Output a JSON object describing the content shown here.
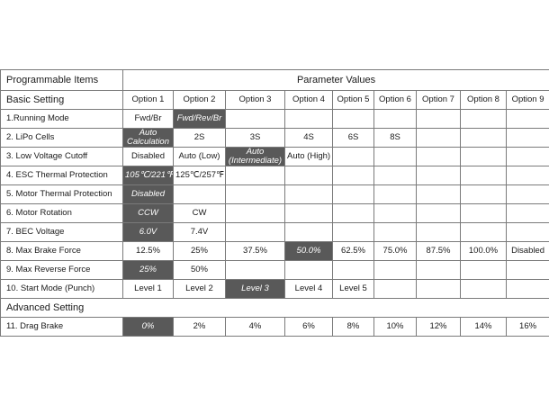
{
  "table": {
    "header": {
      "items_label": "Programmable Items",
      "values_label": "Parameter Values"
    },
    "basic": {
      "label": "Basic Setting",
      "options": [
        "Option 1",
        "Option 2",
        "Option 3",
        "Option 4",
        "Option 5",
        "Option 6",
        "Option 7",
        "Option 8",
        "Option 9"
      ]
    },
    "rows_basic": [
      {
        "item": "1.Running Mode",
        "cells": [
          {
            "text": "Fwd/Br"
          },
          {
            "text": "Fwd/Rev/Br",
            "hl": true
          },
          {
            "text": ""
          },
          {
            "text": ""
          },
          {
            "text": ""
          },
          {
            "text": ""
          },
          {
            "text": ""
          },
          {
            "text": ""
          },
          {
            "text": ""
          }
        ]
      },
      {
        "item": "2. LiPo Cells",
        "cells": [
          {
            "text": "Auto Calculation",
            "hl": true
          },
          {
            "text": "2S"
          },
          {
            "text": "3S"
          },
          {
            "text": "4S"
          },
          {
            "text": "6S"
          },
          {
            "text": "8S"
          },
          {
            "text": ""
          },
          {
            "text": ""
          },
          {
            "text": ""
          }
        ]
      },
      {
        "item": "3. Low Voltage Cutoff",
        "cells": [
          {
            "text": "Disabled"
          },
          {
            "text": "Auto (Low)"
          },
          {
            "text": "Auto (Intermediate)",
            "hl": true
          },
          {
            "text": "Auto (High)"
          },
          {
            "text": ""
          },
          {
            "text": ""
          },
          {
            "text": ""
          },
          {
            "text": ""
          },
          {
            "text": ""
          }
        ]
      },
      {
        "item": "4. ESC Thermal Protection",
        "cells": [
          {
            "text": "105℃/221℉",
            "hl": true
          },
          {
            "text": "125℃/257℉"
          },
          {
            "text": ""
          },
          {
            "text": ""
          },
          {
            "text": ""
          },
          {
            "text": ""
          },
          {
            "text": ""
          },
          {
            "text": ""
          },
          {
            "text": ""
          }
        ]
      },
      {
        "item": "5. Motor Thermal Protection",
        "cells": [
          {
            "text": "Disabled",
            "hl": true
          },
          {
            "text": ""
          },
          {
            "text": ""
          },
          {
            "text": ""
          },
          {
            "text": ""
          },
          {
            "text": ""
          },
          {
            "text": ""
          },
          {
            "text": ""
          },
          {
            "text": ""
          }
        ]
      },
      {
        "item": "6. Motor Rotation",
        "cells": [
          {
            "text": "CCW",
            "hl": true
          },
          {
            "text": "CW"
          },
          {
            "text": ""
          },
          {
            "text": ""
          },
          {
            "text": ""
          },
          {
            "text": ""
          },
          {
            "text": ""
          },
          {
            "text": ""
          },
          {
            "text": ""
          }
        ]
      },
      {
        "item": "7. BEC Voltage",
        "cells": [
          {
            "text": "6.0V",
            "hl": true
          },
          {
            "text": "7.4V"
          },
          {
            "text": ""
          },
          {
            "text": ""
          },
          {
            "text": ""
          },
          {
            "text": ""
          },
          {
            "text": ""
          },
          {
            "text": ""
          },
          {
            "text": ""
          }
        ]
      },
      {
        "item": "8. Max Brake Force",
        "cells": [
          {
            "text": "12.5%"
          },
          {
            "text": "25%"
          },
          {
            "text": "37.5%"
          },
          {
            "text": "50.0%",
            "hl": true
          },
          {
            "text": "62.5%"
          },
          {
            "text": "75.0%"
          },
          {
            "text": "87.5%"
          },
          {
            "text": "100.0%"
          },
          {
            "text": "Disabled"
          }
        ]
      },
      {
        "item": "9. Max Reverse Force",
        "cells": [
          {
            "text": "25%",
            "hl": true
          },
          {
            "text": "50%"
          },
          {
            "text": ""
          },
          {
            "text": ""
          },
          {
            "text": ""
          },
          {
            "text": ""
          },
          {
            "text": ""
          },
          {
            "text": ""
          },
          {
            "text": ""
          }
        ]
      },
      {
        "item": "10. Start Mode (Punch)",
        "cells": [
          {
            "text": "Level 1"
          },
          {
            "text": "Level 2"
          },
          {
            "text": "Level 3",
            "hl": true
          },
          {
            "text": "Level 4"
          },
          {
            "text": "Level 5"
          },
          {
            "text": ""
          },
          {
            "text": ""
          },
          {
            "text": ""
          },
          {
            "text": ""
          }
        ]
      }
    ],
    "advanced": {
      "label": "Advanced Setting"
    },
    "rows_advanced": [
      {
        "item": "11. Drag Brake",
        "cells": [
          {
            "text": "0%",
            "hl": true
          },
          {
            "text": "2%"
          },
          {
            "text": "4%"
          },
          {
            "text": "6%"
          },
          {
            "text": "8%"
          },
          {
            "text": "10%"
          },
          {
            "text": "12%"
          },
          {
            "text": "14%"
          },
          {
            "text": "16%"
          }
        ]
      }
    ],
    "colors": {
      "highlight": "#595959",
      "border": "#7a7a7a"
    }
  }
}
